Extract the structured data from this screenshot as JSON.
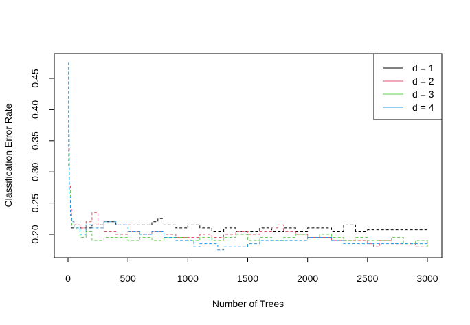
{
  "chart_data": {
    "type": "line",
    "title": "",
    "xlabel": "Number of Trees",
    "ylabel": "Classification Error Rate",
    "xlim": [
      0,
      3000
    ],
    "ylim": [
      0.17,
      0.475
    ],
    "x_ticks": [
      0,
      500,
      1000,
      1500,
      2000,
      2500,
      3000
    ],
    "x_tick_labels": [
      "0",
      "500",
      "1000",
      "1500",
      "2000",
      "2500",
      "3000"
    ],
    "y_ticks": [
      0.2,
      0.25,
      0.3,
      0.35,
      0.4,
      0.45
    ],
    "y_tick_labels": [
      "0.20",
      "0.25",
      "0.30",
      "0.35",
      "0.40",
      "0.45"
    ],
    "grid": false,
    "legend_position": "top-right",
    "line_style": "dashed",
    "series": [
      {
        "name": "d = 1",
        "color": "#000000",
        "x": [
          1,
          5,
          10,
          20,
          30,
          50,
          100,
          150,
          200,
          300,
          400,
          500,
          600,
          700,
          750,
          800,
          900,
          1000,
          1100,
          1200,
          1300,
          1400,
          1500,
          1600,
          1700,
          1800,
          1900,
          2000,
          2100,
          2200,
          2300,
          2400,
          2500,
          2600,
          2700,
          2800,
          2900,
          3000
        ],
        "values": [
          0.475,
          0.36,
          0.27,
          0.23,
          0.21,
          0.215,
          0.21,
          0.21,
          0.215,
          0.22,
          0.215,
          0.215,
          0.215,
          0.22,
          0.225,
          0.215,
          0.21,
          0.215,
          0.21,
          0.205,
          0.21,
          0.205,
          0.205,
          0.21,
          0.205,
          0.21,
          0.205,
          0.21,
          0.21,
          0.205,
          0.215,
          0.205,
          0.207,
          0.207,
          0.207,
          0.207,
          0.207,
          0.207
        ]
      },
      {
        "name": "d = 2",
        "color": "#DF536B",
        "x": [
          1,
          5,
          10,
          20,
          30,
          50,
          100,
          150,
          200,
          250,
          300,
          400,
          500,
          600,
          700,
          800,
          900,
          1000,
          1100,
          1200,
          1300,
          1400,
          1500,
          1600,
          1700,
          1750,
          1800,
          1900,
          2000,
          2100,
          2200,
          2300,
          2400,
          2500,
          2550,
          2600,
          2700,
          2800,
          2900,
          3000
        ],
        "values": [
          0.475,
          0.34,
          0.28,
          0.24,
          0.22,
          0.215,
          0.21,
          0.22,
          0.235,
          0.215,
          0.205,
          0.2,
          0.205,
          0.2,
          0.205,
          0.2,
          0.195,
          0.195,
          0.2,
          0.195,
          0.2,
          0.205,
          0.2,
          0.205,
          0.21,
          0.215,
          0.205,
          0.2,
          0.195,
          0.195,
          0.19,
          0.19,
          0.19,
          0.185,
          0.18,
          0.19,
          0.185,
          0.185,
          0.18,
          0.19
        ]
      },
      {
        "name": "d = 3",
        "color": "#61D04F",
        "x": [
          1,
          5,
          10,
          20,
          30,
          50,
          100,
          150,
          200,
          300,
          400,
          500,
          600,
          700,
          800,
          900,
          1000,
          1100,
          1200,
          1300,
          1400,
          1500,
          1600,
          1700,
          1800,
          1900,
          2000,
          2100,
          2200,
          2300,
          2400,
          2500,
          2600,
          2700,
          2800,
          2900,
          3000
        ],
        "values": [
          0.475,
          0.33,
          0.27,
          0.23,
          0.215,
          0.21,
          0.195,
          0.205,
          0.19,
          0.195,
          0.195,
          0.19,
          0.195,
          0.19,
          0.195,
          0.195,
          0.19,
          0.195,
          0.19,
          0.195,
          0.2,
          0.19,
          0.195,
          0.19,
          0.195,
          0.2,
          0.195,
          0.2,
          0.195,
          0.19,
          0.195,
          0.19,
          0.19,
          0.195,
          0.185,
          0.19,
          0.18
        ]
      },
      {
        "name": "d = 4",
        "color": "#2297E6",
        "x": [
          1,
          5,
          10,
          20,
          30,
          50,
          100,
          150,
          200,
          300,
          400,
          500,
          600,
          700,
          800,
          900,
          1000,
          1050,
          1100,
          1200,
          1250,
          1300,
          1400,
          1500,
          1600,
          1700,
          1800,
          1900,
          2000,
          2100,
          2200,
          2300,
          2400,
          2500,
          2600,
          2700,
          2800,
          2900,
          3000
        ],
        "values": [
          0.475,
          0.31,
          0.26,
          0.23,
          0.22,
          0.21,
          0.2,
          0.215,
          0.21,
          0.22,
          0.215,
          0.205,
          0.2,
          0.205,
          0.195,
          0.19,
          0.19,
          0.18,
          0.185,
          0.185,
          0.175,
          0.18,
          0.18,
          0.185,
          0.19,
          0.19,
          0.19,
          0.19,
          0.195,
          0.195,
          0.19,
          0.185,
          0.185,
          0.185,
          0.185,
          0.185,
          0.185,
          0.185,
          0.185
        ]
      }
    ]
  }
}
